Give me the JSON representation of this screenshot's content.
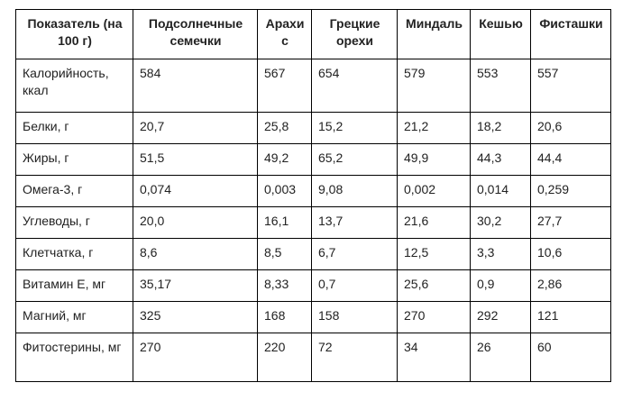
{
  "table": {
    "columns": [
      "Показатель (на 100 г)",
      "Подсолнечные семечки",
      "Арахис",
      "Грецкие орехи",
      "Миндаль",
      "Кешью",
      "Фисташки"
    ],
    "rows": [
      {
        "label": "Калорийность, ккал",
        "values": [
          "584",
          "567",
          "654",
          "579",
          "553",
          "557"
        ]
      },
      {
        "label": "Белки, г",
        "values": [
          "20,7",
          "25,8",
          "15,2",
          "21,2",
          "18,2",
          "20,6"
        ]
      },
      {
        "label": "Жиры, г",
        "values": [
          "51,5",
          "49,2",
          "65,2",
          "49,9",
          "44,3",
          "44,4"
        ]
      },
      {
        "label": "Омега-3, г",
        "values": [
          "0,074",
          "0,003",
          "9,08",
          "0,002",
          "0,014",
          "0,259"
        ]
      },
      {
        "label": "Углеводы, г",
        "values": [
          "20,0",
          "16,1",
          "13,7",
          "21,6",
          "30,2",
          "27,7"
        ]
      },
      {
        "label": "Клетчатка, г",
        "values": [
          "8,6",
          "8,5",
          "6,7",
          "12,5",
          "3,3",
          "10,6"
        ]
      },
      {
        "label": "Витамин Е, мг",
        "values": [
          "35,17",
          "8,33",
          "0,7",
          "25,6",
          "0,9",
          "2,86"
        ]
      },
      {
        "label": "Магний, мг",
        "values": [
          "325",
          "168",
          "158",
          "270",
          "292",
          "121"
        ]
      },
      {
        "label": "Фитостерины, мг",
        "values": [
          "270",
          "220",
          "72",
          "34",
          "26",
          "60"
        ]
      }
    ]
  },
  "colors": {
    "border": "#000000",
    "text": "#222222",
    "background": "#ffffff"
  }
}
